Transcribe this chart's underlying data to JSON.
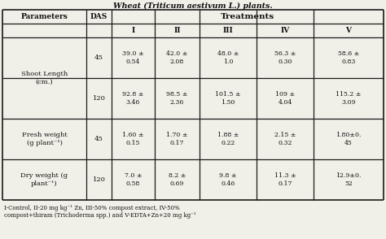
{
  "title": "Wheat (Triticum aestivum L.) plants.",
  "rows": [
    {
      "param": "Shoot Length\n(cm.)",
      "das": "45",
      "values": [
        "39.0 ±\n0.54",
        "42.0 ±\n2.08",
        "48.0 ±\n1.0",
        "56.3 ±\n0.30",
        "58.6 ±\n0.83"
      ],
      "span_param": true
    },
    {
      "param": "",
      "das": "120",
      "values": [
        "92.8 ±\n3.46",
        "98.5 ±\n2.36",
        "101.5 ±\n1.50",
        "109 ±\n4.04",
        "115.2 ±\n3.09"
      ],
      "span_param": false
    },
    {
      "param": "Fresh weight\n(g plant⁻¹)",
      "das": "45",
      "values": [
        "1.60 ±\n0.15",
        "1.70 ±\n0.17",
        "1.88 ±\n0.22",
        "2.15 ±\n0.32",
        "1.80±0.\n45"
      ],
      "span_param": true
    },
    {
      "param": "Dry weight (g\nplant⁻¹)",
      "das": "120",
      "values": [
        "7.0 ±\n0.58",
        "8.2 ±\n0.69",
        "9.8 ±\n0.46",
        "11.3 ±\n0.17",
        "12.9±0.\n52"
      ],
      "span_param": true
    }
  ],
  "footnote1": "I-Control, II-20 mg kg⁻¹ Zn, III-50% compost extract, IV-50%",
  "footnote2": "compost+thiram (Trichoderma spp.) and V-EDTA+Zn+20 mg kg⁻¹",
  "bg_color": "#f0efe8",
  "border_color": "#1a1a1a",
  "text_color": "#111111"
}
